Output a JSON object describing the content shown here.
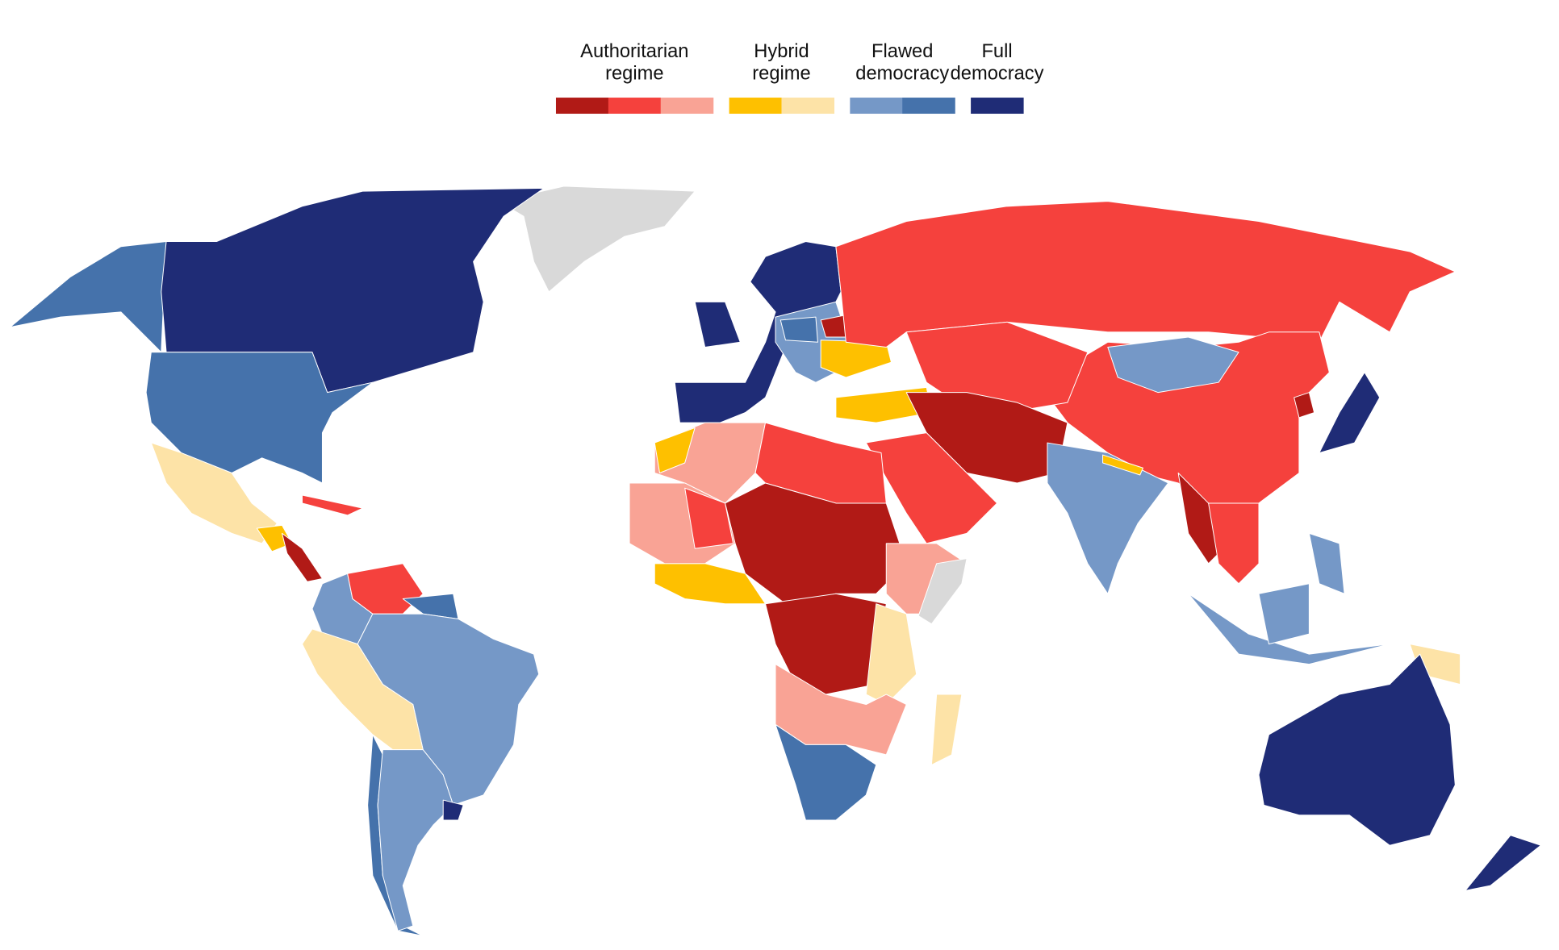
{
  "legend": {
    "groups": [
      {
        "label": [
          "Authoritarian",
          "regime"
        ],
        "colors": [
          "#b11a16",
          "#f5413d",
          "#f9a395"
        ]
      },
      {
        "label": [
          "Hybrid",
          "regime"
        ],
        "colors": [
          "#fec000",
          "#fde3a7"
        ]
      },
      {
        "label": [
          "Flawed",
          "democracy"
        ],
        "colors": [
          "#7598c7",
          "#4572ab"
        ]
      },
      {
        "label": [
          "Full",
          "democracy"
        ],
        "colors": [
          "#1f2c76"
        ]
      }
    ]
  },
  "map": {
    "no_data_color": "#d9d9d9"
  }
}
